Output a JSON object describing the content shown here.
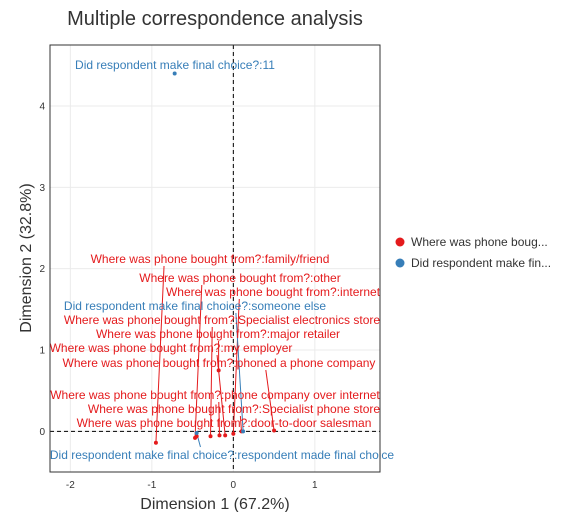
{
  "chart_data": {
    "type": "scatter",
    "title": "Multiple correspondence analysis",
    "xlabel": "Dimension 1 (67.2%)",
    "ylabel": "Dimension 2 (32.8%)",
    "xlim": [
      -2.25,
      1.8
    ],
    "ylim": [
      -0.5,
      4.75
    ],
    "xticks": [
      -2,
      -1,
      0,
      1
    ],
    "yticks": [
      0,
      1,
      2,
      3,
      4
    ],
    "grid": true,
    "reference_lines": {
      "x": 0,
      "y": 0,
      "style": "dashed"
    },
    "legend_position": "right",
    "series": [
      {
        "name": "Where was phone boug...",
        "color": "#e41a1c",
        "points": [
          {
            "x": -0.95,
            "y": -0.14,
            "label": "Where was phone bought from?:family/friend"
          },
          {
            "x": -0.47,
            "y": -0.08,
            "label": "Where was phone bought from?:other"
          },
          {
            "x": 0.0,
            "y": -0.03,
            "label": "Where was phone bought from?:internet"
          },
          {
            "x": -0.28,
            "y": -0.06,
            "label": "Where was phone bought from?:Specialist electronics store"
          },
          {
            "x": -0.18,
            "y": 0.75,
            "label": "Where was phone bought from?:major retailer"
          },
          {
            "x": -0.1,
            "y": -0.05,
            "label": "Where was phone bought from?:my employer"
          },
          {
            "x": 0.5,
            "y": 0.01,
            "label": "Where was phone bought from?:phoned a phone company"
          },
          {
            "x": -0.17,
            "y": -0.05,
            "label": "Where was phone bought from?:phone company over internet"
          },
          {
            "x": 0.1,
            "y": 0.0,
            "label": "Where was phone bought from?:Specialist phone store"
          },
          {
            "x": -0.45,
            "y": -0.06,
            "label": "Where was phone bought from?:door-to-door salesman"
          }
        ]
      },
      {
        "name": "Did respondent make fin...",
        "color": "#377eb8",
        "points": [
          {
            "x": -0.72,
            "y": 4.4,
            "label": "Did respondent make final choice?:11"
          },
          {
            "x": 0.12,
            "y": 0.0,
            "label": "Did respondent make final choice?:someone else"
          },
          {
            "x": -0.45,
            "y": -0.02,
            "label": "Did respondent make final choice?:respondent made final choice"
          }
        ]
      }
    ]
  }
}
